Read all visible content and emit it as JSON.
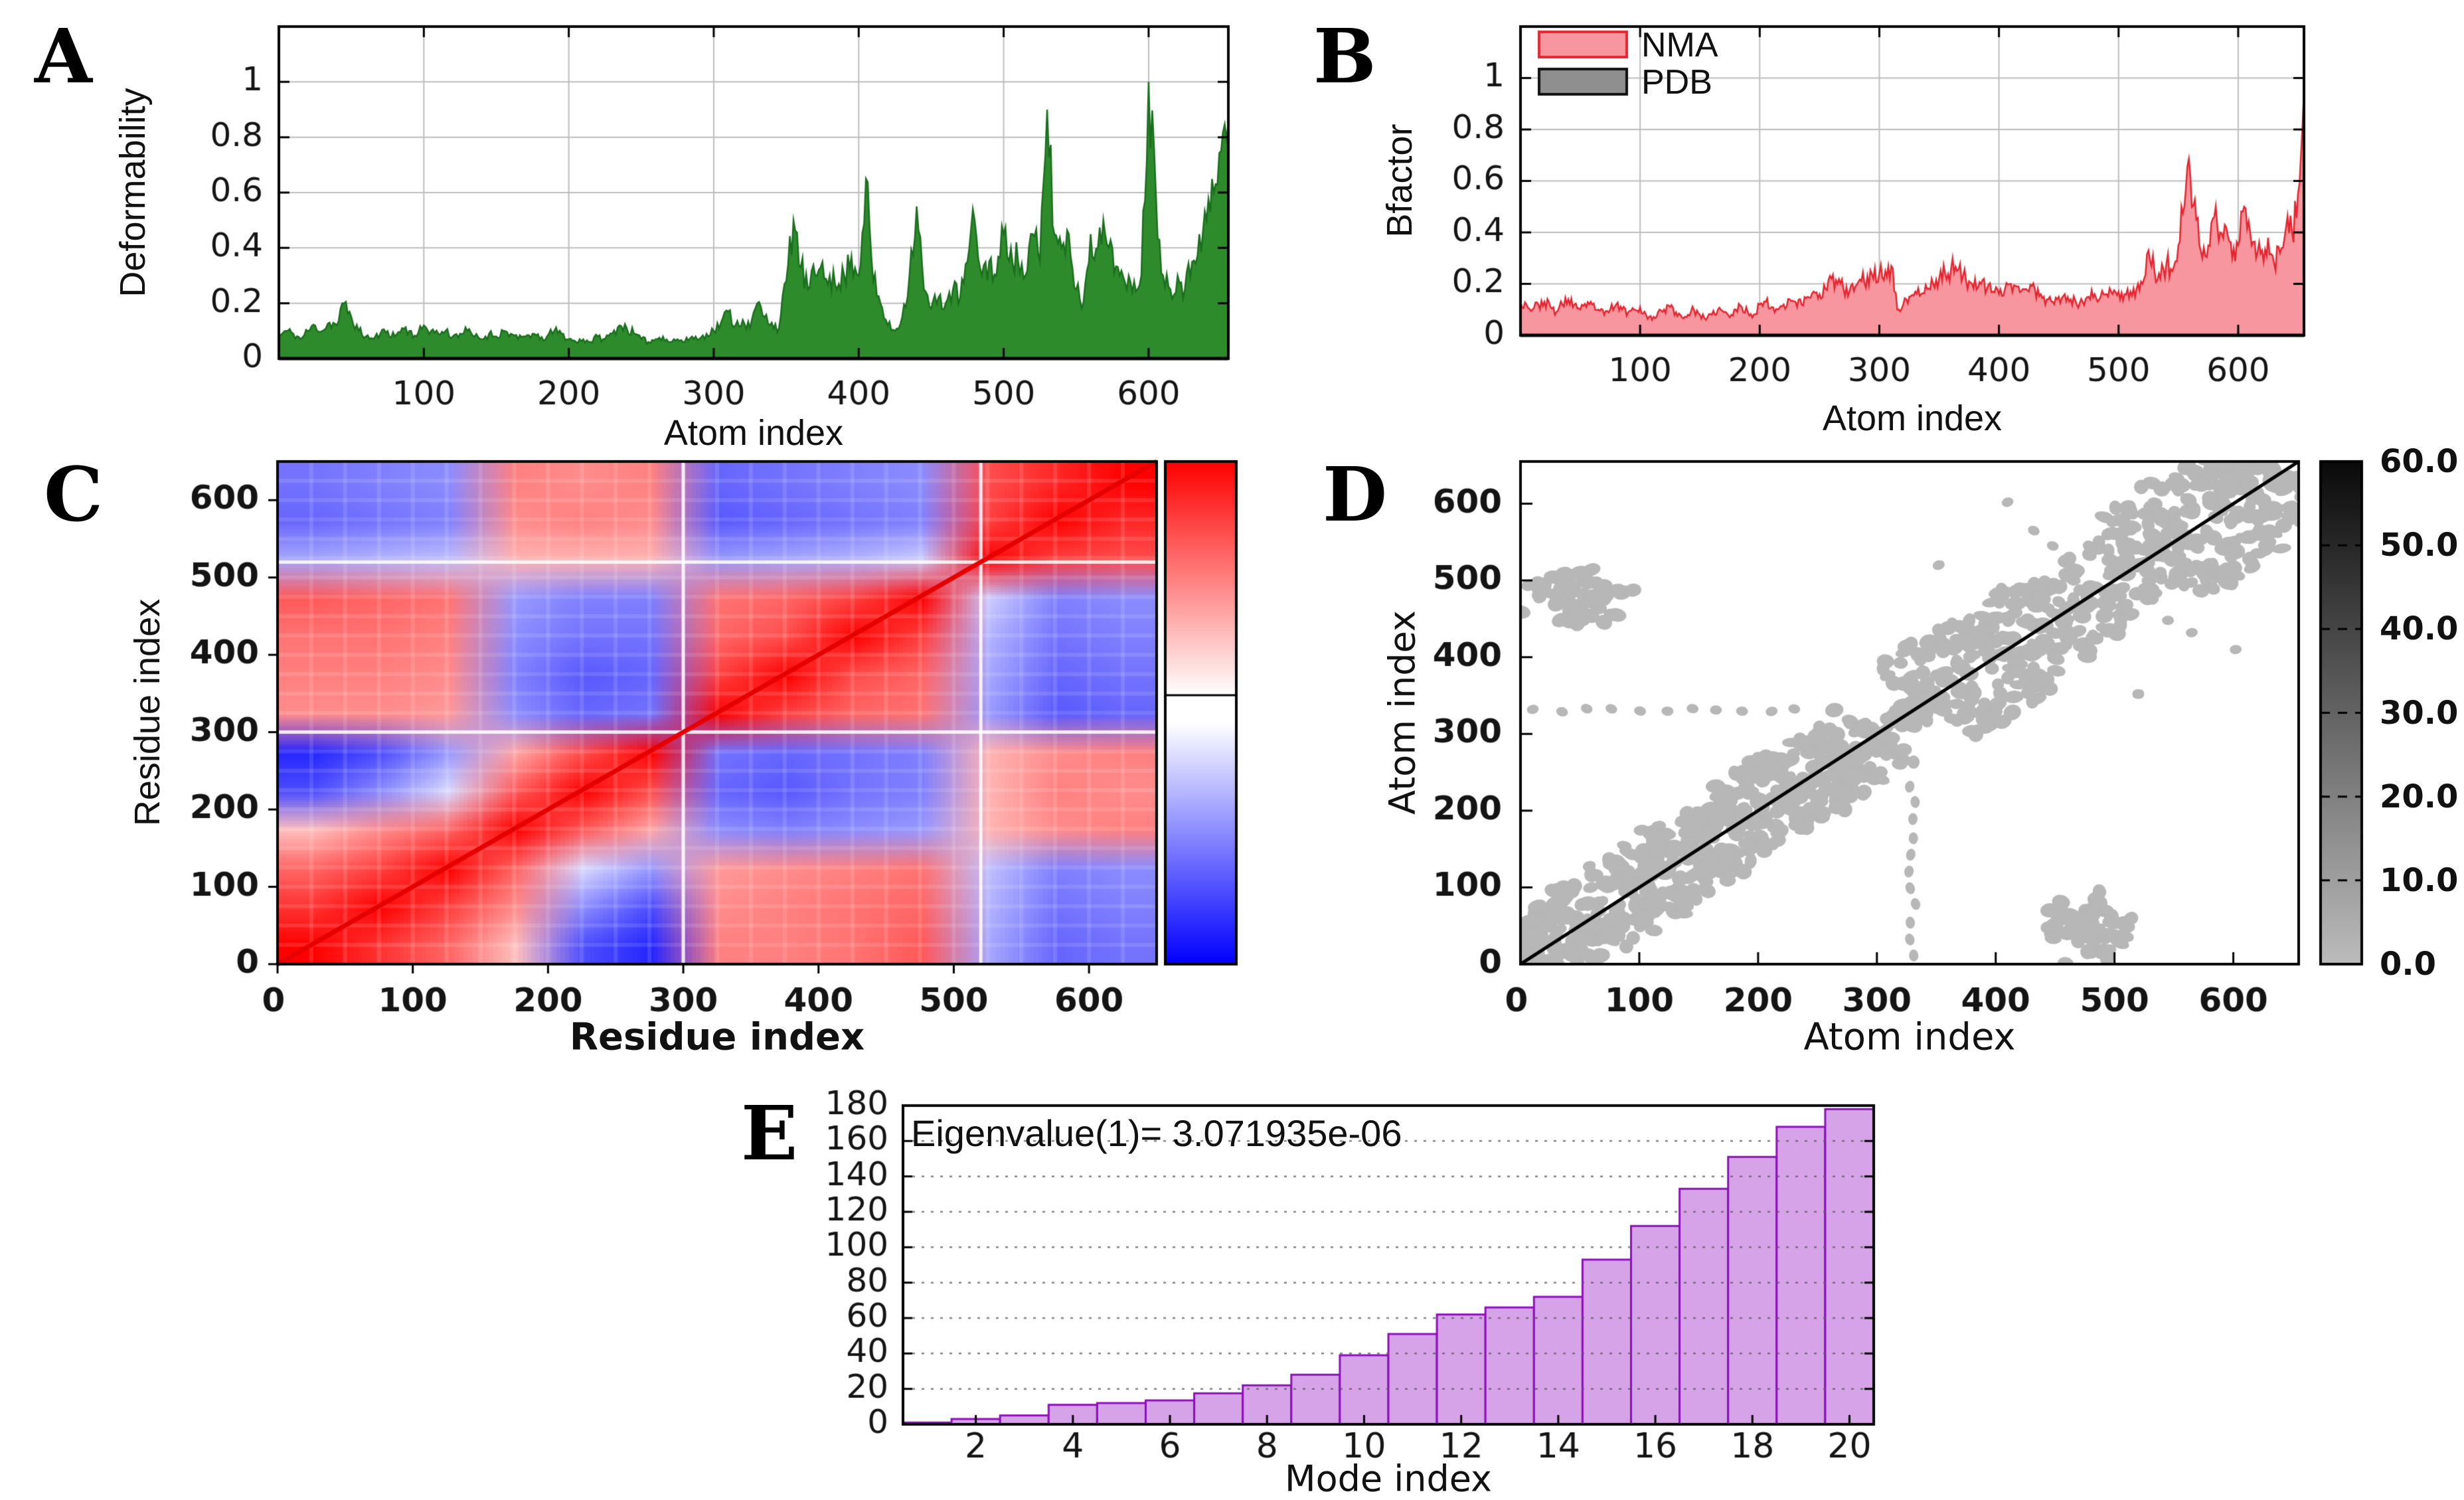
{
  "letters": [
    "A",
    "B",
    "C",
    "D",
    "E"
  ],
  "chart_data": [
    {
      "type": "area",
      "panel": "A",
      "xlabel": "Atom index",
      "ylabel": "Deformability",
      "x_step": 5,
      "x_max": 655,
      "ylim": [
        0,
        1.2
      ],
      "ytick_labels": [
        "0",
        "0.2",
        "0.4",
        "0.6",
        "0.8",
        "1"
      ],
      "ytick_values": [
        0,
        0.2,
        0.4,
        0.6,
        0.8,
        1
      ],
      "xticks": [
        100,
        200,
        300,
        400,
        500,
        600
      ],
      "fill": "#2e8b2c",
      "stroke": "#1b6e1e",
      "grid_color": "#bdbdbd",
      "values": [
        0.08,
        0.1,
        0.09,
        0.07,
        0.1,
        0.12,
        0.1,
        0.13,
        0.12,
        0.2,
        0.15,
        0.1,
        0.08,
        0.07,
        0.09,
        0.1,
        0.08,
        0.11,
        0.1,
        0.08,
        0.12,
        0.1,
        0.09,
        0.1,
        0.08,
        0.09,
        0.1,
        0.08,
        0.07,
        0.09,
        0.08,
        0.1,
        0.09,
        0.07,
        0.08,
        0.09,
        0.07,
        0.08,
        0.1,
        0.09,
        0.07,
        0.06,
        0.07,
        0.06,
        0.08,
        0.07,
        0.09,
        0.12,
        0.11,
        0.09,
        0.07,
        0.06,
        0.07,
        0.08,
        0.06,
        0.07,
        0.06,
        0.08,
        0.07,
        0.09,
        0.1,
        0.13,
        0.17,
        0.12,
        0.14,
        0.11,
        0.2,
        0.15,
        0.13,
        0.11,
        0.28,
        0.5,
        0.33,
        0.25,
        0.3,
        0.35,
        0.3,
        0.25,
        0.3,
        0.37,
        0.3,
        0.65,
        0.28,
        0.2,
        0.12,
        0.1,
        0.15,
        0.3,
        0.55,
        0.25,
        0.18,
        0.22,
        0.2,
        0.25,
        0.22,
        0.35,
        0.5,
        0.3,
        0.35,
        0.3,
        0.45,
        0.4,
        0.35,
        0.3,
        0.45,
        0.35,
        0.9,
        0.45,
        0.4,
        0.45,
        0.25,
        0.2,
        0.45,
        0.4,
        0.45,
        0.4,
        0.3,
        0.25,
        0.28,
        0.3,
        1.0,
        0.6,
        0.3,
        0.25,
        0.3,
        0.25,
        0.35,
        0.45,
        0.5,
        0.6,
        0.75,
        0.85
      ]
    },
    {
      "type": "area",
      "panel": "B",
      "xlabel": "Atom index",
      "ylabel": "Bfactor",
      "x_step": 5,
      "x_max": 655,
      "ylim": [
        0,
        1.2
      ],
      "ytick_labels": [
        "0",
        "0.2",
        "0.4",
        "0.6",
        "0.8",
        "1"
      ],
      "ytick_values": [
        0,
        0.2,
        0.4,
        0.6,
        0.8,
        1
      ],
      "xticks": [
        100,
        200,
        300,
        400,
        500,
        600
      ],
      "fill": "#f7969e",
      "stroke": "#e5252f",
      "grid_color": "#bdbdbd",
      "legend": [
        {
          "label": "NMA",
          "fill": "#f7969e",
          "stroke": "#e5252f"
        },
        {
          "label": "PDB",
          "fill": "#8f8f8f",
          "stroke": "#101010"
        }
      ],
      "values": [
        0.13,
        0.12,
        0.1,
        0.12,
        0.13,
        0.11,
        0.09,
        0.12,
        0.14,
        0.12,
        0.1,
        0.11,
        0.12,
        0.1,
        0.08,
        0.1,
        0.12,
        0.1,
        0.09,
        0.1,
        0.11,
        0.08,
        0.06,
        0.09,
        0.1,
        0.11,
        0.09,
        0.07,
        0.08,
        0.1,
        0.08,
        0.06,
        0.08,
        0.1,
        0.09,
        0.07,
        0.1,
        0.11,
        0.09,
        0.08,
        0.12,
        0.13,
        0.11,
        0.1,
        0.12,
        0.14,
        0.13,
        0.12,
        0.15,
        0.17,
        0.16,
        0.18,
        0.22,
        0.2,
        0.18,
        0.17,
        0.19,
        0.21,
        0.23,
        0.22,
        0.24,
        0.25,
        0.27,
        0.1,
        0.12,
        0.15,
        0.17,
        0.16,
        0.18,
        0.2,
        0.22,
        0.24,
        0.26,
        0.25,
        0.23,
        0.21,
        0.22,
        0.2,
        0.18,
        0.17,
        0.16,
        0.18,
        0.2,
        0.19,
        0.18,
        0.17,
        0.18,
        0.16,
        0.14,
        0.13,
        0.15,
        0.16,
        0.14,
        0.12,
        0.13,
        0.15,
        0.16,
        0.15,
        0.16,
        0.16,
        0.17,
        0.16,
        0.17,
        0.18,
        0.2,
        0.33,
        0.25,
        0.22,
        0.28,
        0.25,
        0.35,
        0.5,
        0.62,
        0.45,
        0.3,
        0.35,
        0.46,
        0.4,
        0.42,
        0.3,
        0.35,
        0.5,
        0.4,
        0.3,
        0.33,
        0.38,
        0.28,
        0.32,
        0.42,
        0.4,
        0.55,
        0.95
      ]
    },
    {
      "type": "heatmap",
      "panel": "C",
      "xlabel": "Residue index",
      "ylabel": "Residue index",
      "axis_max": 650,
      "ticks": [
        0,
        100,
        200,
        300,
        400,
        500,
        600
      ],
      "cell_size": 50,
      "palette": {
        "positive": "#ff0000",
        "zero": "#ffffff",
        "negative": "#0000ff"
      },
      "diagonal_color": "#e60000",
      "block_boundaries": [
        300,
        520
      ],
      "colorbar": {
        "top": "#ff0000",
        "mid": "#ffffff",
        "bottom": "#0000ff"
      },
      "matrix_rows_bottom_to_top": [
        [
          1.0,
          0.8,
          0.6,
          0.25,
          -0.7,
          -0.85,
          0.5,
          0.5,
          0.55,
          0.65,
          -0.35,
          -0.6,
          -0.55
        ],
        [
          0.8,
          1.0,
          0.75,
          0.45,
          -0.45,
          -0.7,
          0.45,
          0.5,
          0.55,
          0.6,
          -0.3,
          -0.55,
          -0.5
        ],
        [
          0.6,
          0.75,
          1.0,
          0.6,
          -0.15,
          -0.4,
          0.4,
          0.45,
          0.5,
          0.55,
          -0.25,
          -0.5,
          -0.45
        ],
        [
          0.25,
          0.45,
          0.6,
          1.0,
          0.65,
          0.35,
          -0.45,
          -0.5,
          -0.45,
          -0.4,
          0.3,
          0.45,
          0.5
        ],
        [
          -0.7,
          -0.45,
          -0.15,
          0.65,
          1.0,
          0.7,
          -0.6,
          -0.65,
          -0.55,
          -0.5,
          0.3,
          0.5,
          0.45
        ],
        [
          -0.85,
          -0.7,
          -0.4,
          0.35,
          0.7,
          1.0,
          -0.55,
          -0.6,
          -0.55,
          -0.5,
          0.3,
          0.45,
          0.5
        ],
        [
          0.45,
          0.45,
          0.4,
          -0.45,
          -0.6,
          -0.55,
          1.0,
          0.75,
          0.6,
          0.55,
          -0.4,
          -0.65,
          -0.6
        ],
        [
          0.5,
          0.5,
          0.45,
          -0.5,
          -0.65,
          -0.6,
          0.75,
          1.0,
          0.7,
          0.6,
          -0.35,
          -0.6,
          -0.55
        ],
        [
          0.55,
          0.55,
          0.5,
          -0.45,
          -0.55,
          -0.55,
          0.6,
          0.7,
          1.0,
          0.75,
          -0.3,
          -0.55,
          -0.5
        ],
        [
          0.65,
          0.6,
          0.55,
          -0.4,
          -0.5,
          -0.5,
          0.55,
          0.6,
          0.75,
          1.0,
          -0.2,
          -0.5,
          -0.45
        ],
        [
          -0.35,
          -0.3,
          -0.25,
          0.3,
          0.3,
          0.3,
          -0.4,
          -0.35,
          -0.3,
          -0.2,
          1.0,
          0.75,
          0.7
        ],
        [
          -0.6,
          -0.55,
          -0.5,
          0.45,
          0.5,
          0.45,
          -0.65,
          -0.6,
          -0.55,
          -0.5,
          0.75,
          1.0,
          0.85
        ],
        [
          -0.55,
          -0.5,
          -0.45,
          0.5,
          0.45,
          0.5,
          -0.6,
          -0.55,
          -0.5,
          -0.45,
          0.7,
          0.85,
          1.0
        ]
      ]
    },
    {
      "type": "contact-map",
      "panel": "D",
      "xlabel": "Atom index",
      "ylabel": "Atom index",
      "axis_max": 655,
      "ticks": [
        0,
        100,
        200,
        300,
        400,
        500,
        600
      ],
      "dot_color": "#b7b7b7",
      "diagonal_color": "#000000",
      "colorbar": {
        "min": 0.0,
        "max": 60.0,
        "tick_labels": [
          "60.0",
          "50.0",
          "40.0",
          "30.0",
          "20.0",
          "10.0",
          "0.0"
        ],
        "top_color": "#0a0a0a",
        "bottom_color": "#bcbcbc"
      },
      "diag_bands": [
        {
          "from": 0,
          "to": 300,
          "halfwidth": 42,
          "n": 520
        },
        {
          "from": 295,
          "to": 345,
          "halfwidth": 12,
          "n": 40
        },
        {
          "from": 340,
          "to": 455,
          "halfwidth": 55,
          "n": 180
        },
        {
          "from": 450,
          "to": 530,
          "halfwidth": 42,
          "n": 95
        },
        {
          "from": 528,
          "to": 652,
          "halfwidth": 62,
          "n": 250
        }
      ],
      "blob_clusters": [
        {
          "cx": 45,
          "cy": 480,
          "rx": 55,
          "ry": 40,
          "n": 55
        }
      ],
      "dotted_lines": [
        {
          "y": 330,
          "x1": 12,
          "x2": 235,
          "step": 22
        }
      ],
      "sparse_dots": [
        [
          410,
          602
        ],
        [
          448,
          545
        ],
        [
          520,
          352
        ],
        [
          565,
          432
        ],
        [
          352,
          520
        ]
      ]
    },
    {
      "type": "bar",
      "panel": "E",
      "title": "Eigenvalue(1)= 3.071935e-06",
      "xlabel": "Mode index",
      "categories": [
        1,
        2,
        3,
        4,
        5,
        6,
        7,
        8,
        9,
        10,
        11,
        12,
        13,
        14,
        15,
        16,
        17,
        18,
        19,
        20
      ],
      "xticks": [
        2,
        4,
        6,
        8,
        10,
        12,
        14,
        16,
        18,
        20
      ],
      "ylim": [
        0,
        180
      ],
      "ytick_values": [
        0,
        20,
        40,
        60,
        80,
        100,
        120,
        140,
        160,
        180
      ],
      "values": [
        1,
        3,
        5,
        11,
        12,
        13.5,
        17.5,
        22,
        28,
        39,
        51,
        62,
        66,
        72,
        93,
        112,
        133,
        151,
        168,
        178
      ],
      "fill": "#d7a3e8",
      "stroke": "#8c10b8",
      "grid_color": "#5a5a5a"
    }
  ]
}
